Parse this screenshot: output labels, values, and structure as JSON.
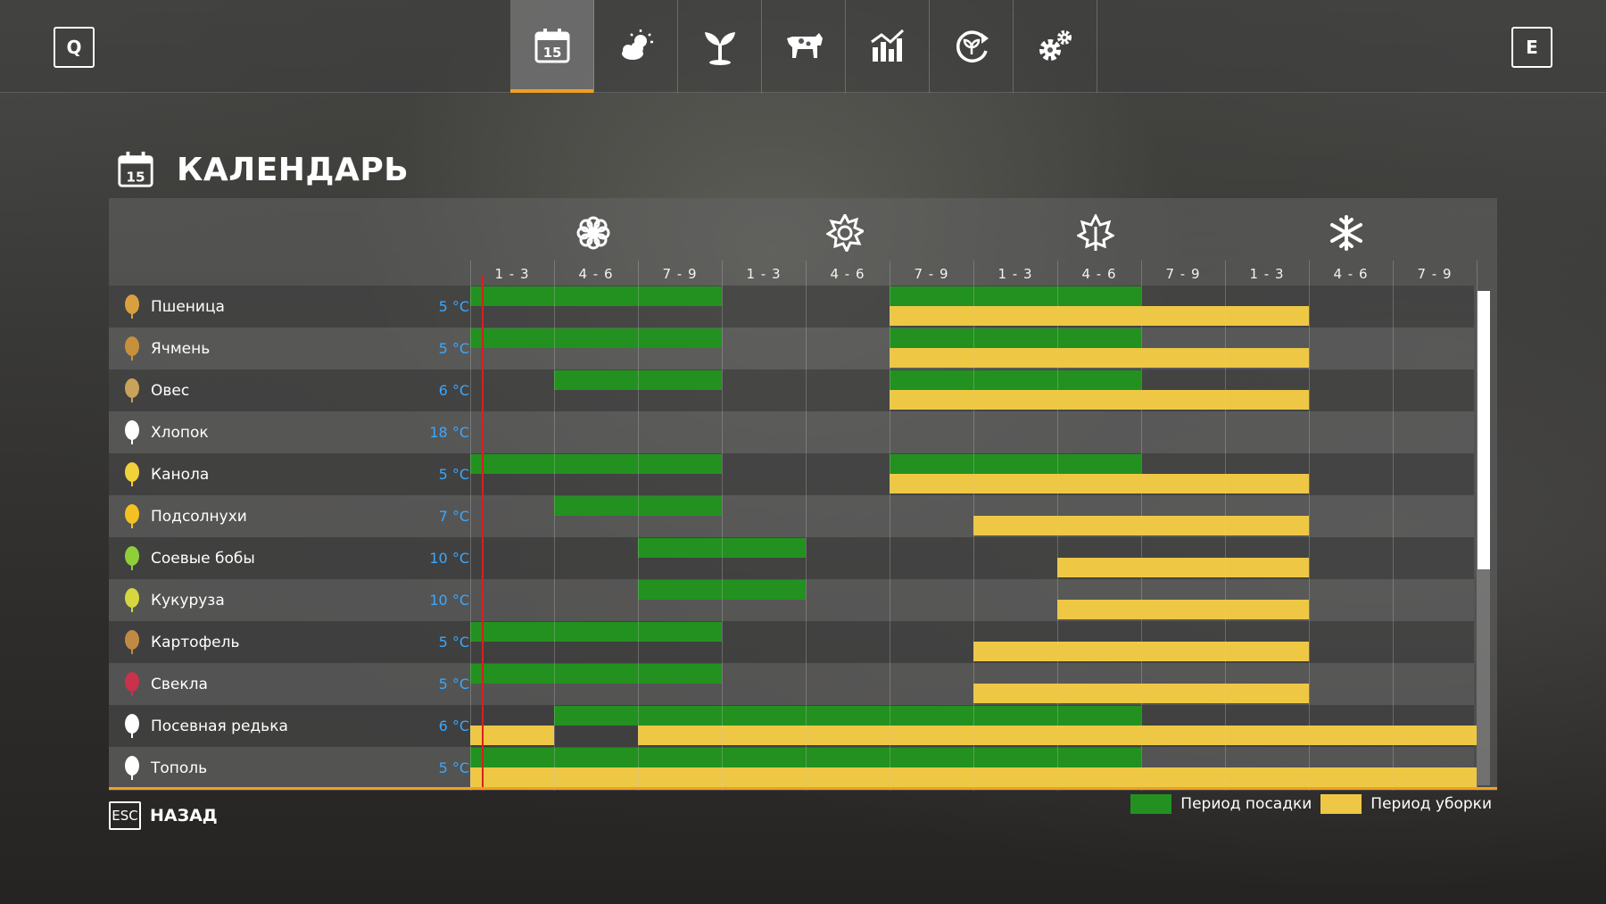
{
  "topbar": {
    "left_key": "Q",
    "right_key": "E",
    "calendar_day": "15",
    "tabs": [
      {
        "name": "calendar-icon",
        "active": true
      },
      {
        "name": "weather-icon",
        "active": false
      },
      {
        "name": "crop-sprout-icon",
        "active": false
      },
      {
        "name": "cow-icon",
        "active": false
      },
      {
        "name": "statistics-chart-icon",
        "active": false
      },
      {
        "name": "production-cycle-icon",
        "active": false
      },
      {
        "name": "settings-gears-icon",
        "active": false
      }
    ]
  },
  "title": "КАЛЕНДАРЬ",
  "seasons": [
    "spring-flower-icon",
    "summer-sun-icon",
    "autumn-leaf-icon",
    "winter-snowflake-icon"
  ],
  "periods": [
    "1 - 3",
    "4 - 6",
    "7 - 9",
    "1 - 3",
    "4 - 6",
    "7 - 9",
    "1 - 3",
    "4 - 6",
    "7 - 9",
    "1 - 3",
    "4 - 6",
    "7 - 9"
  ],
  "crops": [
    {
      "name": "Пшеница",
      "temp": "5 °C",
      "planting": [
        [
          1,
          3
        ],
        [
          6,
          8
        ]
      ],
      "harvest": [
        [
          6,
          10
        ]
      ]
    },
    {
      "name": "Ячмень",
      "temp": "5 °C",
      "planting": [
        [
          1,
          3
        ],
        [
          6,
          8
        ]
      ],
      "harvest": [
        [
          6,
          10
        ]
      ]
    },
    {
      "name": "Овес",
      "temp": "6 °C",
      "planting": [
        [
          2,
          3
        ],
        [
          6,
          8
        ]
      ],
      "harvest": [
        [
          6,
          10
        ]
      ]
    },
    {
      "name": "Хлопок",
      "temp": "18 °C",
      "planting": [],
      "harvest": []
    },
    {
      "name": "Канола",
      "temp": "5 °C",
      "planting": [
        [
          1,
          3
        ],
        [
          6,
          8
        ]
      ],
      "harvest": [
        [
          6,
          10
        ]
      ]
    },
    {
      "name": "Подсолнухи",
      "temp": "7 °C",
      "planting": [
        [
          2,
          3
        ]
      ],
      "harvest": [
        [
          7,
          10
        ]
      ]
    },
    {
      "name": "Соевые бобы",
      "temp": "10 °C",
      "planting": [
        [
          3,
          4
        ]
      ],
      "harvest": [
        [
          8,
          10
        ]
      ]
    },
    {
      "name": "Кукуруза",
      "temp": "10 °C",
      "planting": [
        [
          3,
          4
        ]
      ],
      "harvest": [
        [
          8,
          10
        ]
      ]
    },
    {
      "name": "Картофель",
      "temp": "5 °C",
      "planting": [
        [
          1,
          3
        ]
      ],
      "harvest": [
        [
          7,
          10
        ]
      ]
    },
    {
      "name": "Свекла",
      "temp": "5 °C",
      "planting": [
        [
          1,
          3
        ]
      ],
      "harvest": [
        [
          7,
          10
        ]
      ]
    },
    {
      "name": "Посевная редька",
      "temp": "6 °C",
      "planting": [
        [
          2,
          8
        ]
      ],
      "harvest": [
        [
          1,
          1
        ],
        [
          3,
          12
        ]
      ]
    },
    {
      "name": "Тополь",
      "temp": "5 °C",
      "planting": [
        [
          1,
          8
        ]
      ],
      "harvest": [
        [
          1,
          12
        ]
      ]
    }
  ],
  "legend": {
    "planting": "Период посадки",
    "harvest": "Период уборки"
  },
  "colors": {
    "planting": "#23911f",
    "harvest": "#eec845",
    "accent": "#f0a020",
    "today": "#d82020",
    "temp": "#3aa8ff"
  },
  "footer": {
    "esc_key": "ESC",
    "back_label": "НАЗАД"
  }
}
